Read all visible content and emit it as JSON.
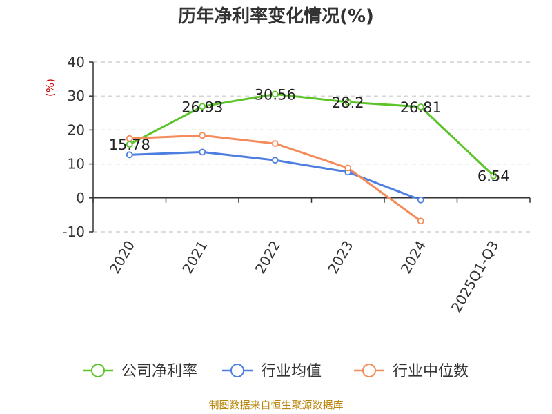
{
  "chart_data": {
    "type": "line",
    "title": "历年净利率变化情况(%)",
    "ylabel": "(%)",
    "xlabel": "",
    "categories": [
      "2020",
      "2021",
      "2022",
      "2023",
      "2024",
      "2025Q1-Q3"
    ],
    "ylim": [
      -10,
      40
    ],
    "yticks": [
      40,
      30,
      20,
      10,
      0,
      -10
    ],
    "grid": true,
    "legend_position": "bottom",
    "series": [
      {
        "name": "公司净利率",
        "color": "#5cc42a",
        "values": [
          15.78,
          26.93,
          30.56,
          28.2,
          26.81,
          6.54
        ],
        "labels": [
          "15.78",
          "26.93",
          "30.56",
          "28.2",
          "26.81",
          "6.54"
        ]
      },
      {
        "name": "行业均值",
        "color": "#4e7fe0",
        "values": [
          12.7,
          13.5,
          11.1,
          7.6,
          -0.6,
          null
        ]
      },
      {
        "name": "行业中位数",
        "color": "#f58b5a",
        "values": [
          17.5,
          18.4,
          16.0,
          8.8,
          -6.8,
          null
        ]
      }
    ]
  },
  "source": "制图数据来自恒生聚源数据库"
}
